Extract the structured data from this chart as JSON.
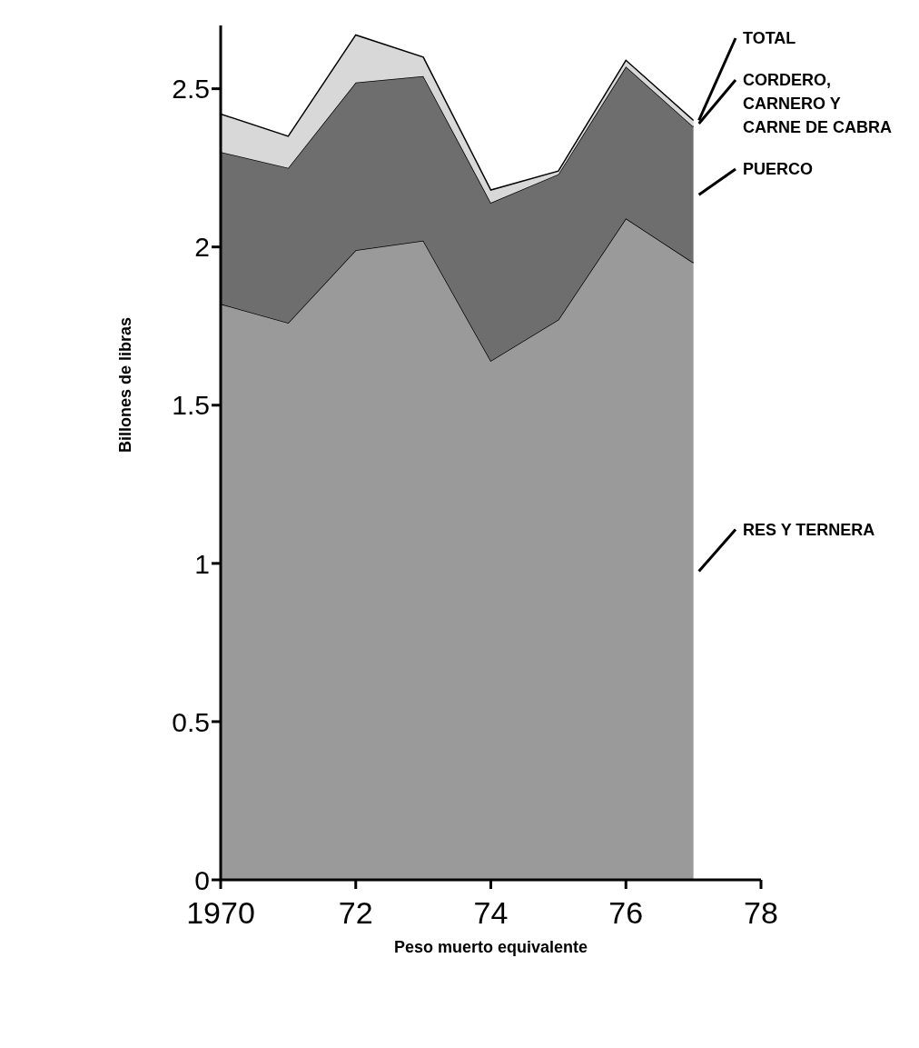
{
  "chart_data": {
    "type": "area",
    "stacked": true,
    "xlabel": "Peso muerto equivalente",
    "ylabel": "Billones de libras",
    "x": [
      1970,
      1971,
      1972,
      1973,
      1974,
      1975,
      1976,
      1977
    ],
    "xlim": [
      1970,
      1978
    ],
    "xticks": [
      {
        "value": 1970,
        "label": "1970"
      },
      {
        "value": 1972,
        "label": "72"
      },
      {
        "value": 1974,
        "label": "74"
      },
      {
        "value": 1976,
        "label": "76"
      },
      {
        "value": 1978,
        "label": "78"
      }
    ],
    "ylim": [
      0,
      2.7
    ],
    "yticks": [
      0,
      0.5,
      1.0,
      1.5,
      2.0,
      2.5
    ],
    "series": [
      {
        "name": "RES Y TERNERA",
        "color": "#9a9a9a",
        "values": [
          1.82,
          1.76,
          1.99,
          2.02,
          1.64,
          1.77,
          2.09,
          1.95
        ]
      },
      {
        "name": "PUERCO",
        "color": "#6e6e6e",
        "values": [
          0.48,
          0.49,
          0.53,
          0.52,
          0.5,
          0.46,
          0.48,
          0.43
        ]
      },
      {
        "name": "CORDERO, CARNERO Y CARNE DE CABRA",
        "color": "#d8d8d8",
        "values": [
          0.12,
          0.1,
          0.15,
          0.06,
          0.04,
          0.01,
          0.02,
          0.02
        ]
      }
    ],
    "annotations": [
      {
        "text": "TOTAL",
        "x": 1977,
        "y": 2.4
      }
    ],
    "legend": "right",
    "marker": "none"
  }
}
